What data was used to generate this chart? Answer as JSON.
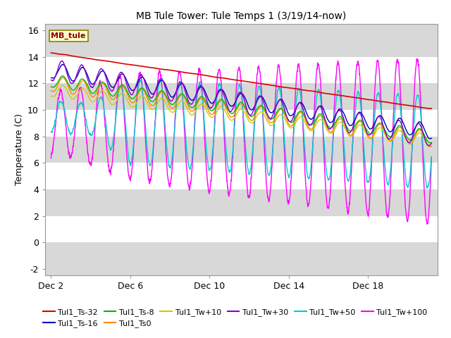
{
  "title": "MB Tule Tower: Tule Temps 1 (3/19/14-now)",
  "ylabel": "Temperature (C)",
  "xlim_days": [
    -0.3,
    19.5
  ],
  "ylim": [
    -2.5,
    16.5
  ],
  "yticks": [
    -2,
    0,
    2,
    4,
    6,
    8,
    10,
    12,
    14,
    16
  ],
  "xtick_labels": [
    "Dec 2",
    "Dec 6",
    "Dec 10",
    "Dec 14",
    "Dec 18"
  ],
  "xtick_positions": [
    0,
    4,
    8,
    12,
    16
  ],
  "background_color": "#ffffff",
  "plot_bg_color": "#d8d8d8",
  "white_band_color": "#ffffff",
  "legend_box_color": "#ffffcc",
  "legend_box_edge": "#8B8000",
  "series": [
    {
      "label": "Tul1_Ts-32",
      "color": "#dd0000",
      "lw": 1.2
    },
    {
      "label": "Tul1_Ts-16",
      "color": "#0000bb",
      "lw": 1.0
    },
    {
      "label": "Tul1_Ts-8",
      "color": "#00bb00",
      "lw": 1.0
    },
    {
      "label": "Tul1_Ts0",
      "color": "#ff8800",
      "lw": 1.0
    },
    {
      "label": "Tul1_Tw+10",
      "color": "#cccc00",
      "lw": 1.0
    },
    {
      "label": "Tul1_Tw+30",
      "color": "#8800cc",
      "lw": 1.0
    },
    {
      "label": "Tul1_Tw+50",
      "color": "#00cccc",
      "lw": 1.0
    },
    {
      "label": "Tul1_Tw+100",
      "color": "#ff00ff",
      "lw": 1.0
    }
  ]
}
